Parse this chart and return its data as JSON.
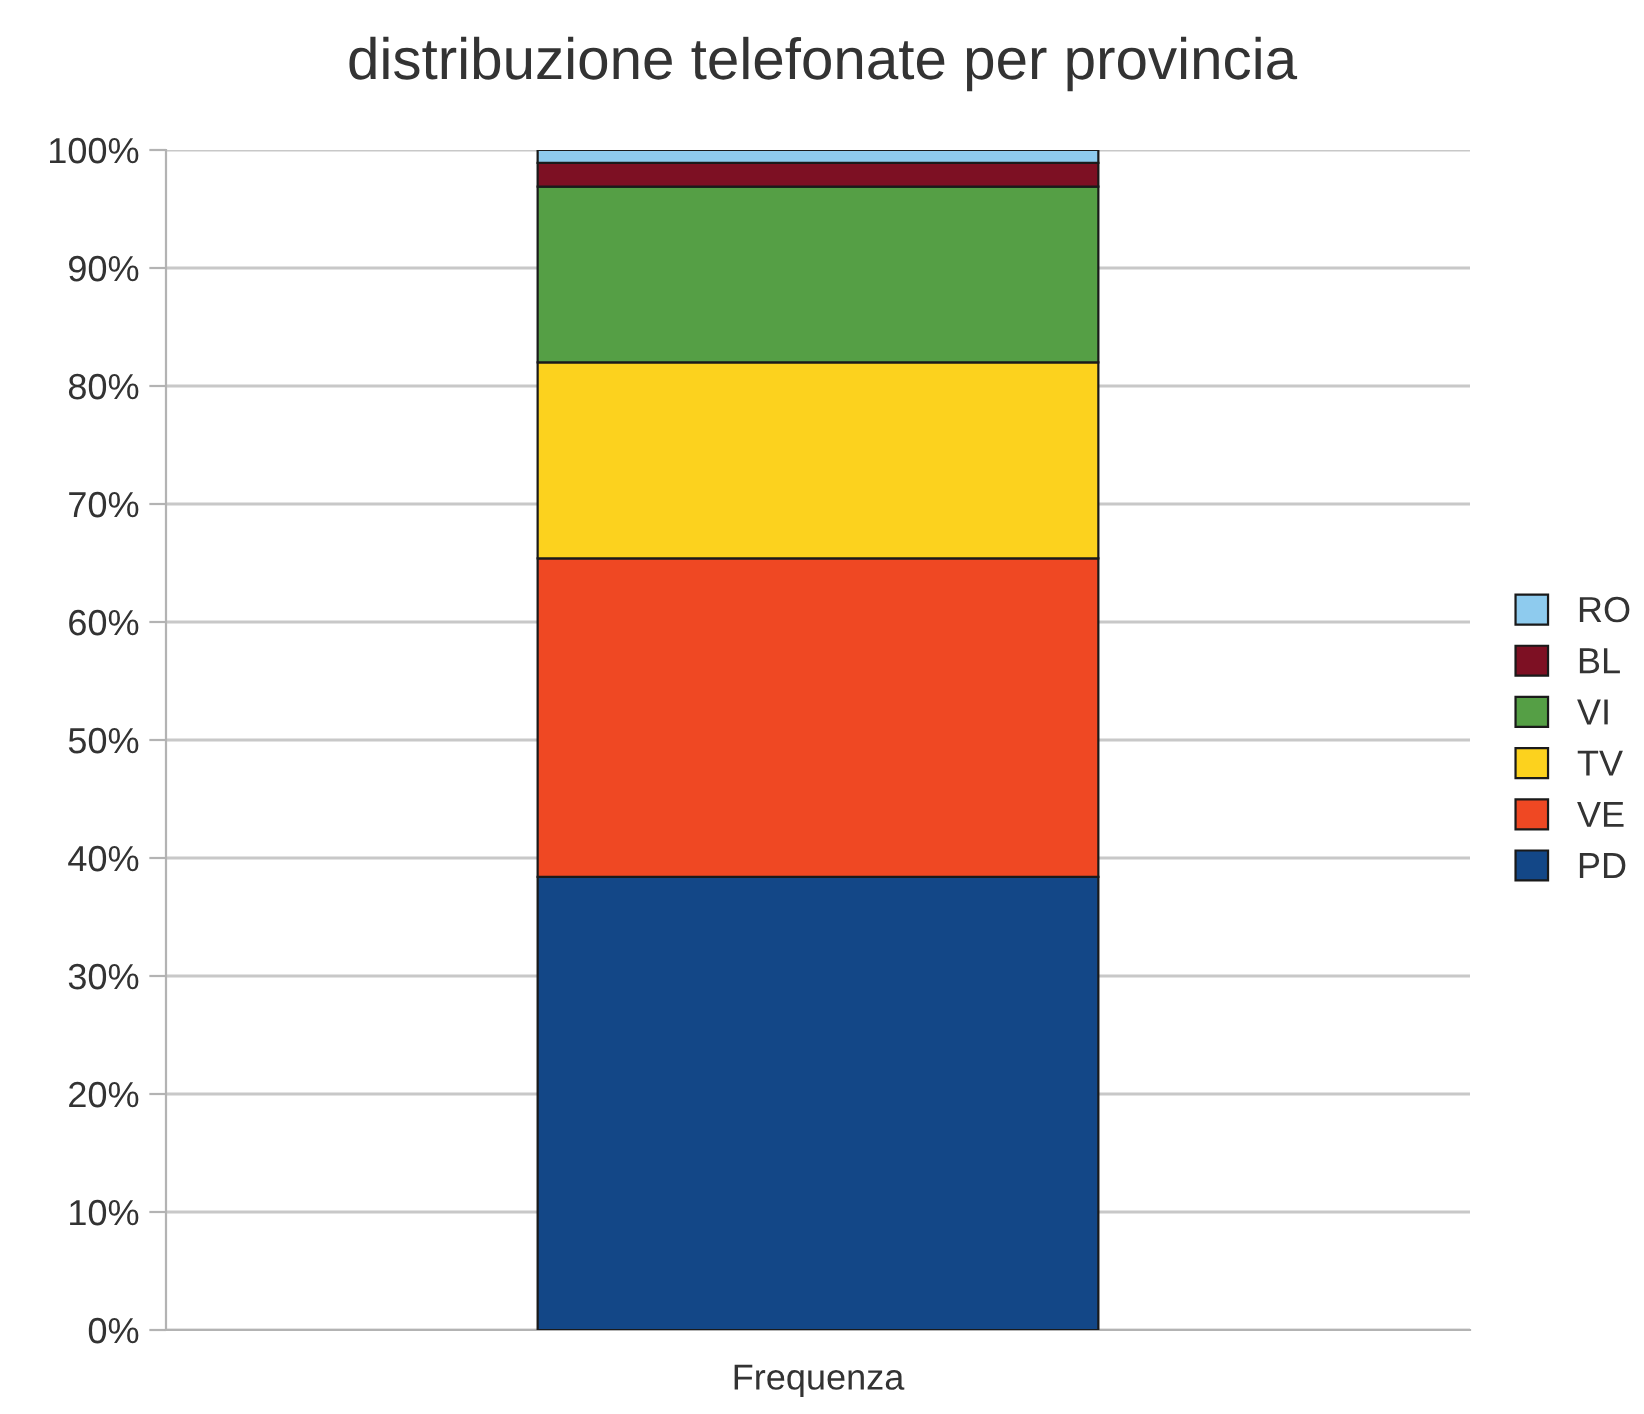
{
  "chart_data": {
    "type": "bar",
    "title": "distribuzione telefonate per provincia",
    "categories": [
      "Frequenza"
    ],
    "stacked": true,
    "series": [
      {
        "name": "PD",
        "color": "#134787",
        "values": [
          38.4
        ]
      },
      {
        "name": "VE",
        "color": "#ef4823",
        "values": [
          27.0
        ]
      },
      {
        "name": "TV",
        "color": "#fcd21e",
        "values": [
          16.6
        ]
      },
      {
        "name": "VI",
        "color": "#559f45",
        "values": [
          14.9
        ]
      },
      {
        "name": "BL",
        "color": "#7d1023",
        "values": [
          2.0
        ]
      },
      {
        "name": "RO",
        "color": "#8ecbee",
        "values": [
          1.1
        ]
      }
    ],
    "ylim": [
      0,
      100
    ],
    "yticks": [
      {
        "value": 0,
        "label": "0%"
      },
      {
        "value": 10,
        "label": "10%"
      },
      {
        "value": 20,
        "label": "20%"
      },
      {
        "value": 30,
        "label": "30%"
      },
      {
        "value": 40,
        "label": "40%"
      },
      {
        "value": 50,
        "label": "50%"
      },
      {
        "value": 60,
        "label": "60%"
      },
      {
        "value": 70,
        "label": "70%"
      },
      {
        "value": 80,
        "label": "80%"
      },
      {
        "value": 90,
        "label": "90%"
      },
      {
        "value": 100,
        "label": "100%"
      }
    ],
    "grid": "y",
    "legend": "right"
  }
}
